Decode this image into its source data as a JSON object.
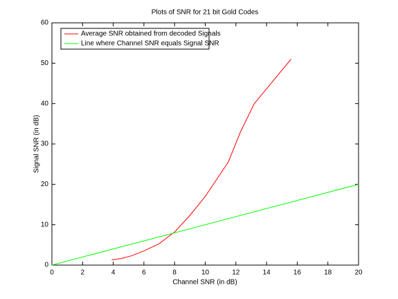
{
  "chart_data": {
    "type": "line",
    "title": "Plots of SNR for 21 bit Gold Codes",
    "x_label": "Channel SNR (in dB)",
    "y_label": "Signal SNR (in dB)",
    "xlim": [
      0,
      20
    ],
    "xticks": [
      0,
      2,
      4,
      6,
      8,
      10,
      12,
      14,
      16,
      18,
      20
    ],
    "ylim": [
      0,
      60
    ],
    "yticks": [
      0,
      10,
      20,
      30,
      40,
      50,
      60
    ],
    "legend": "upper left",
    "series": [
      {
        "name": "Average SNR obtained from decoded Signals",
        "color": "#ff0000",
        "x": [
          3.9,
          4.5,
          5.2,
          6,
          7,
          8,
          9,
          10,
          11.5,
          12.3,
          13.2,
          14.4,
          15.6
        ],
        "values": [
          1.3,
          1.6,
          2.3,
          3.5,
          5.3,
          8.2,
          12.3,
          17,
          25.5,
          33,
          40,
          45.5,
          51
        ]
      },
      {
        "name": "Line where Channel SNR equals Signal SNR",
        "color": "#00ff00",
        "x": [
          0,
          20
        ],
        "values": [
          0,
          20
        ]
      }
    ]
  }
}
